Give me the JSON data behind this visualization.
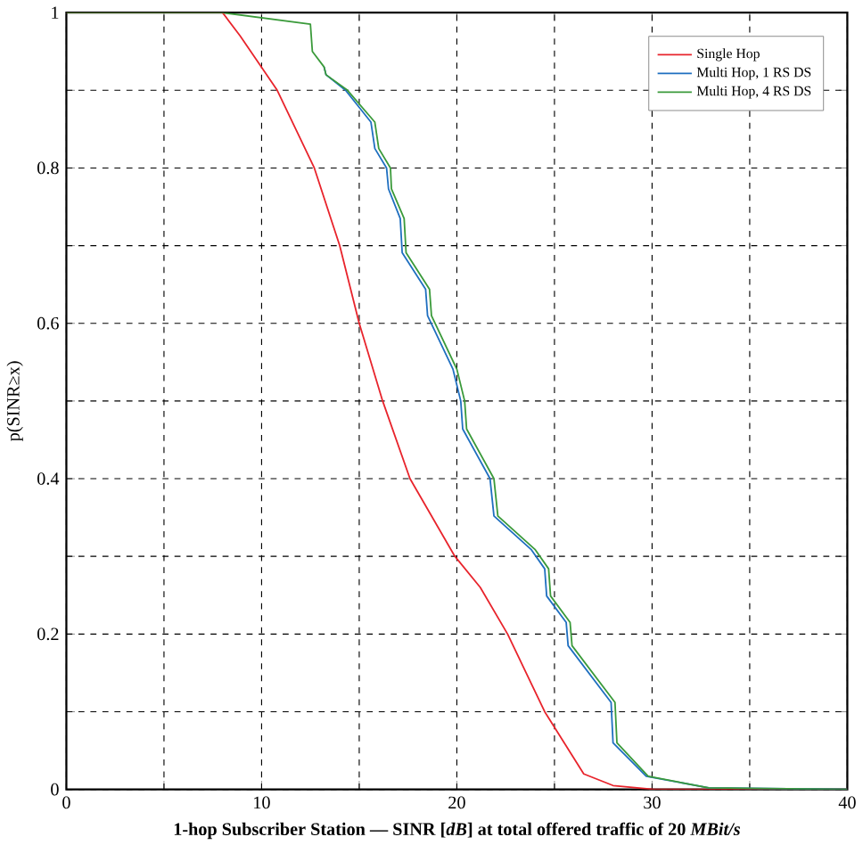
{
  "chart_data": {
    "type": "line",
    "xlabel": "1-hop Subscriber Station — SINR [*dB*] at total offered traffic of 20 *MBit/s*",
    "ylabel": "p(SINR≥x)",
    "xlim": [
      0,
      40
    ],
    "ylim": [
      0,
      1
    ],
    "xticks": [
      0,
      {
        "value": 5,
        "label": null
      },
      10,
      {
        "value": 15,
        "label": null
      },
      20,
      {
        "value": 25,
        "label": null
      },
      30,
      {
        "value": 35,
        "label": null
      },
      40
    ],
    "yticks": [
      0,
      {
        "value": 0.1,
        "label": null
      },
      0.2,
      {
        "value": 0.3,
        "label": null
      },
      0.4,
      {
        "value": 0.5,
        "label": null
      },
      0.6,
      {
        "value": 0.7,
        "label": null
      },
      0.8,
      {
        "value": 0.9,
        "label": null
      },
      1
    ],
    "grid": true,
    "legend": "top right",
    "marker": "none",
    "line_style": "solid",
    "series": [
      {
        "name": "Single Hop",
        "color": "#e8242c",
        "x": [
          0,
          8.0,
          8.9,
          10.8,
          12.7,
          14.0,
          15.0,
          16.2,
          17.6,
          19.9,
          21.2,
          22.6,
          24.5,
          26.5,
          28.0,
          30.1,
          40
        ],
        "values": [
          1,
          1,
          0.97,
          0.9,
          0.8,
          0.7,
          0.6,
          0.5,
          0.4,
          0.3,
          0.26,
          0.2,
          0.1,
          0.02,
          0.005,
          0,
          0
        ]
      },
      {
        "name": "Multi Hop, 1 RS DS",
        "color": "#1f6fc0",
        "x": [
          13.2,
          13.3,
          14.3,
          15.6,
          15.8,
          16.4,
          16.5,
          17.1,
          17.2,
          18.4,
          18.5,
          19.8,
          20.2,
          20.3,
          21.7,
          21.9,
          23.8,
          24.5,
          24.6,
          25.6,
          25.7,
          27.9,
          28.0,
          29.7,
          32.9,
          40
        ],
        "values": [
          0.93,
          0.92,
          0.9,
          0.859,
          0.825,
          0.8,
          0.773,
          0.735,
          0.691,
          0.644,
          0.61,
          0.541,
          0.5,
          0.464,
          0.4,
          0.352,
          0.309,
          0.284,
          0.249,
          0.215,
          0.185,
          0.112,
          0.06,
          0.017,
          0.002,
          0
        ]
      },
      {
        "name": "Multi Hop, 4 RS DS",
        "color": "#3a9a3a",
        "x": [
          0,
          8.0,
          12.5,
          12.6,
          13.2,
          13.3,
          14.4,
          15.8,
          16.0,
          16.6,
          16.65,
          17.3,
          17.4,
          18.6,
          18.7,
          20.0,
          20.4,
          20.5,
          21.9,
          22.1,
          24.0,
          24.7,
          24.8,
          25.8,
          25.9,
          28.1,
          28.2,
          29.8,
          32.9,
          40
        ],
        "values": [
          1,
          1,
          0.985,
          0.95,
          0.93,
          0.92,
          0.9,
          0.859,
          0.825,
          0.8,
          0.773,
          0.735,
          0.691,
          0.644,
          0.61,
          0.541,
          0.5,
          0.464,
          0.4,
          0.352,
          0.309,
          0.284,
          0.249,
          0.215,
          0.185,
          0.112,
          0.06,
          0.017,
          0.002,
          0
        ]
      }
    ]
  }
}
